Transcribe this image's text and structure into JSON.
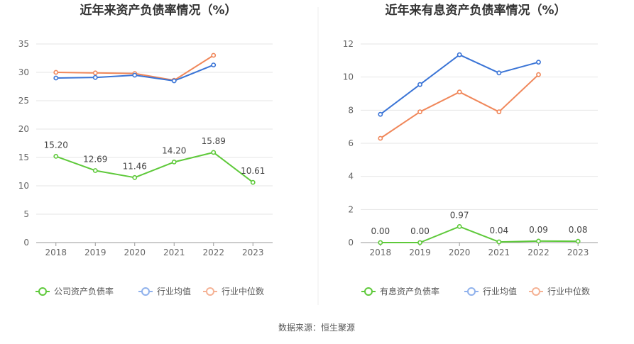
{
  "source": "数据来源：恒生聚源",
  "colors": {
    "main": "#5ec93a",
    "avg": "#3a74d6",
    "median": "#f0875a",
    "grid": "#e6e6e6",
    "axis": "#999999"
  },
  "chart_data": [
    {
      "type": "line",
      "title": "近年来资产负债率情况（%）",
      "categories": [
        "2018",
        "2019",
        "2020",
        "2021",
        "2022",
        "2023"
      ],
      "ylim": [
        0,
        35
      ],
      "yticks": [
        0,
        5,
        10,
        15,
        20,
        25,
        30,
        35
      ],
      "grid": true,
      "legend_position": "bottom",
      "series": [
        {
          "name": "公司资产负债率",
          "role": "main",
          "values": [
            15.2,
            12.69,
            11.46,
            14.2,
            15.89,
            10.61
          ],
          "labels": [
            "15.20",
            "12.69",
            "11.46",
            "14.20",
            "15.89",
            "10.61"
          ]
        },
        {
          "name": "行业均值",
          "role": "avg",
          "values": [
            29.0,
            29.1,
            29.5,
            28.5,
            31.3,
            null
          ]
        },
        {
          "name": "行业中位数",
          "role": "median",
          "values": [
            30.0,
            29.9,
            29.8,
            28.6,
            33.0,
            null
          ]
        }
      ]
    },
    {
      "type": "line",
      "title": "近年来有息资产负债率情况（%）",
      "categories": [
        "2018",
        "2019",
        "2020",
        "2021",
        "2022",
        "2023"
      ],
      "ylim": [
        0,
        12
      ],
      "yticks": [
        0,
        2,
        4,
        6,
        8,
        10,
        12
      ],
      "grid": true,
      "legend_position": "bottom",
      "series": [
        {
          "name": "有息资产负债率",
          "role": "main",
          "values": [
            0.0,
            0.0,
            0.97,
            0.04,
            0.09,
            0.08
          ],
          "labels": [
            "0.00",
            "0.00",
            "0.97",
            "0.04",
            "0.09",
            "0.08"
          ]
        },
        {
          "name": "行业均值",
          "role": "avg",
          "values": [
            7.75,
            9.55,
            11.35,
            10.25,
            10.9,
            null
          ]
        },
        {
          "name": "行业中位数",
          "role": "median",
          "values": [
            6.3,
            7.9,
            9.1,
            7.9,
            10.15,
            null
          ]
        }
      ]
    }
  ]
}
